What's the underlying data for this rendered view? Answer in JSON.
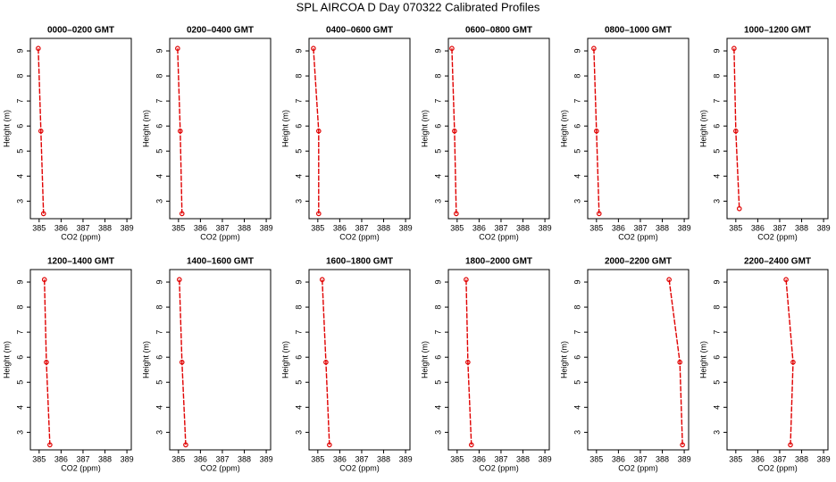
{
  "title": "SPL AIRCOA D  Day 070322  Calibrated Profiles",
  "chart_data": [
    {
      "type": "line",
      "title": "0000–0200 GMT",
      "x_label": "CO2 (ppm)",
      "y_label": "Height (m)",
      "color": "#e00000",
      "x": [
        384.96,
        385.08,
        385.2
      ],
      "y": [
        9.1,
        5.8,
        2.5
      ],
      "xlim": [
        384.6,
        389.2
      ],
      "ylim": [
        2.3,
        9.5
      ],
      "xticks": [
        385,
        386,
        387,
        388,
        389
      ],
      "yticks": [
        3,
        4,
        5,
        6,
        7,
        8,
        9
      ]
    },
    {
      "type": "line",
      "title": "0200–0400 GMT",
      "x_label": "CO2 (ppm)",
      "y_label": "Height (m)",
      "color": "#e00000",
      "x": [
        384.96,
        385.08,
        385.16
      ],
      "y": [
        9.1,
        5.8,
        2.5
      ],
      "xlim": [
        384.6,
        389.2
      ],
      "ylim": [
        2.3,
        9.5
      ],
      "xticks": [
        385,
        386,
        387,
        388,
        389
      ],
      "yticks": [
        3,
        4,
        5,
        6,
        7,
        8,
        9
      ]
    },
    {
      "type": "line",
      "title": "0400–0600 GMT",
      "x_label": "CO2 (ppm)",
      "y_label": "Height (m)",
      "color": "#e00000",
      "x": [
        384.8,
        385.04,
        385.04
      ],
      "y": [
        9.1,
        5.8,
        2.5
      ],
      "xlim": [
        384.6,
        389.2
      ],
      "ylim": [
        2.3,
        9.5
      ],
      "xticks": [
        385,
        386,
        387,
        388,
        389
      ],
      "yticks": [
        3,
        4,
        5,
        6,
        7,
        8,
        9
      ]
    },
    {
      "type": "line",
      "title": "0600–0800 GMT",
      "x_label": "CO2 (ppm)",
      "y_label": "Height (m)",
      "color": "#e00000",
      "x": [
        384.76,
        384.88,
        384.96
      ],
      "y": [
        9.1,
        5.8,
        2.5
      ],
      "xlim": [
        384.6,
        389.2
      ],
      "ylim": [
        2.3,
        9.5
      ],
      "xticks": [
        385,
        386,
        387,
        388,
        389
      ],
      "yticks": [
        3,
        4,
        5,
        6,
        7,
        8,
        9
      ]
    },
    {
      "type": "line",
      "title": "0800–1000 GMT",
      "x_label": "CO2 (ppm)",
      "y_label": "Height (m)",
      "color": "#e00000",
      "x": [
        384.88,
        385.0,
        385.12
      ],
      "y": [
        9.1,
        5.8,
        2.5
      ],
      "xlim": [
        384.6,
        389.2
      ],
      "ylim": [
        2.3,
        9.5
      ],
      "xticks": [
        385,
        386,
        387,
        388,
        389
      ],
      "yticks": [
        3,
        4,
        5,
        6,
        7,
        8,
        9
      ]
    },
    {
      "type": "line",
      "title": "1000–1200 GMT",
      "x_label": "CO2 (ppm)",
      "y_label": "Height (m)",
      "color": "#e00000",
      "x": [
        384.92,
        385.0,
        385.16
      ],
      "y": [
        9.1,
        5.8,
        2.7
      ],
      "xlim": [
        384.6,
        389.2
      ],
      "ylim": [
        2.3,
        9.5
      ],
      "xticks": [
        385,
        386,
        387,
        388,
        389
      ],
      "yticks": [
        3,
        4,
        5,
        6,
        7,
        8,
        9
      ]
    },
    {
      "type": "line",
      "title": "1200–1400 GMT",
      "x_label": "CO2 (ppm)",
      "y_label": "Height (m)",
      "color": "#e00000",
      "x": [
        385.24,
        385.33,
        385.49
      ],
      "y": [
        9.1,
        5.8,
        2.5
      ],
      "xlim": [
        384.6,
        389.2
      ],
      "ylim": [
        2.3,
        9.5
      ],
      "xticks": [
        385,
        386,
        387,
        388,
        389
      ],
      "yticks": [
        3,
        4,
        5,
        6,
        7,
        8,
        9
      ]
    },
    {
      "type": "line",
      "title": "1400–1600 GMT",
      "x_label": "CO2 (ppm)",
      "y_label": "Height (m)",
      "color": "#e00000",
      "x": [
        385.04,
        385.16,
        385.33
      ],
      "y": [
        9.1,
        5.8,
        2.5
      ],
      "xlim": [
        384.6,
        389.2
      ],
      "ylim": [
        2.3,
        9.5
      ],
      "xticks": [
        385,
        386,
        387,
        388,
        389
      ],
      "yticks": [
        3,
        4,
        5,
        6,
        7,
        8,
        9
      ]
    },
    {
      "type": "line",
      "title": "1600–1800 GMT",
      "x_label": "CO2 (ppm)",
      "y_label": "Height (m)",
      "color": "#e00000",
      "x": [
        385.2,
        385.37,
        385.53
      ],
      "y": [
        9.1,
        5.8,
        2.5
      ],
      "xlim": [
        384.6,
        389.2
      ],
      "ylim": [
        2.3,
        9.5
      ],
      "xticks": [
        385,
        386,
        387,
        388,
        389
      ],
      "yticks": [
        3,
        4,
        5,
        6,
        7,
        8,
        9
      ]
    },
    {
      "type": "line",
      "title": "1800–2000 GMT",
      "x_label": "CO2 (ppm)",
      "y_label": "Height (m)",
      "color": "#e00000",
      "x": [
        385.41,
        385.49,
        385.65
      ],
      "y": [
        9.1,
        5.8,
        2.5
      ],
      "xlim": [
        384.6,
        389.2
      ],
      "ylim": [
        2.3,
        9.5
      ],
      "xticks": [
        385,
        386,
        387,
        388,
        389
      ],
      "yticks": [
        3,
        4,
        5,
        6,
        7,
        8,
        9
      ]
    },
    {
      "type": "line",
      "title": "2000–2200 GMT",
      "x_label": "CO2 (ppm)",
      "y_label": "Height (m)",
      "color": "#e00000",
      "x": [
        388.31,
        388.8,
        388.92
      ],
      "y": [
        9.1,
        5.8,
        2.5
      ],
      "xlim": [
        384.6,
        389.2
      ],
      "ylim": [
        2.3,
        9.5
      ],
      "xticks": [
        385,
        386,
        387,
        388,
        389
      ],
      "yticks": [
        3,
        4,
        5,
        6,
        7,
        8,
        9
      ]
    },
    {
      "type": "line",
      "title": "2200–2400 GMT",
      "x_label": "CO2 (ppm)",
      "y_label": "Height (m)",
      "color": "#e00000",
      "x": [
        387.29,
        387.61,
        387.49
      ],
      "y": [
        9.1,
        5.8,
        2.5
      ],
      "xlim": [
        384.6,
        389.2
      ],
      "ylim": [
        2.3,
        9.5
      ],
      "xticks": [
        385,
        386,
        387,
        388,
        389
      ],
      "yticks": [
        3,
        4,
        5,
        6,
        7,
        8,
        9
      ]
    }
  ]
}
